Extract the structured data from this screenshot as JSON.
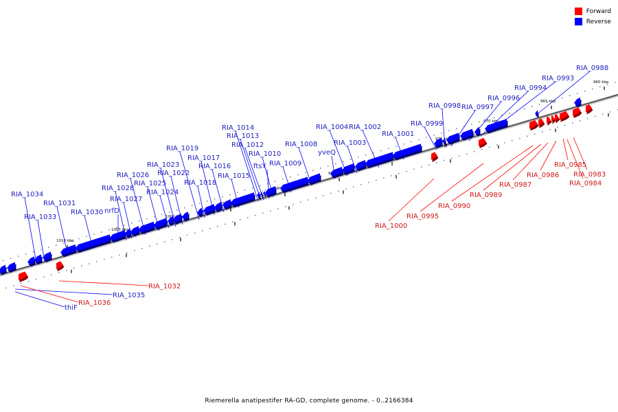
{
  "caption": "Riemerella anatipestifer RA-GD, complete genome. - 0..2166384",
  "legend": [
    {
      "label": "Forward",
      "color": "#ff0000"
    },
    {
      "label": "Reverse",
      "color": "#0000ff"
    }
  ],
  "colors": {
    "forward": "#ff0000",
    "reverse": "#0000ff",
    "forward_text": "#d01818",
    "reverse_text": "#2020c0"
  },
  "ticks": [
    "960 kbp",
    "965 kbp",
    "970 kbp",
    "975 kbp",
    "980 kbp",
    "985 kbp",
    "990 kbp",
    "995 kbp",
    "1000 kbp",
    "1005 kbp",
    "1010 kbp"
  ],
  "reverse_genes": [
    "RIA_0988",
    "RIA_0993",
    "RIA_0994",
    "RIA_0996",
    "RIA_0997",
    "RIA_0998",
    "RIA_0999",
    "RIA_1001",
    "RIA_1002",
    "RIA_1003",
    "RIA_1004",
    "yveQ",
    "RIA_1008",
    "RIA_1009",
    "RIA_1010",
    "ftsY",
    "RIA_1012",
    "RIA_1013",
    "RIA_1014",
    "RIA_1015",
    "RIA_1016",
    "RIA_1017",
    "RIA_1018",
    "RIA_1019",
    "RIA_1022",
    "RIA_1023",
    "RIA_1024",
    "RIA_1025",
    "RIA_1026",
    "RIA_1027",
    "RIA_1028",
    "nrfD",
    "RIA_1030",
    "RIA_1031",
    "RIA_1033",
    "RIA_1034",
    "RIA_1035",
    "thiF"
  ],
  "forward_genes": [
    "RIA_0983",
    "RIA_0984",
    "RIA_0985",
    "RIA_0986",
    "RIA_0987",
    "RIA_0989",
    "RIA_0990",
    "RIA_0995",
    "RIA_1000",
    "RIA_1032",
    "RIA_1036"
  ]
}
